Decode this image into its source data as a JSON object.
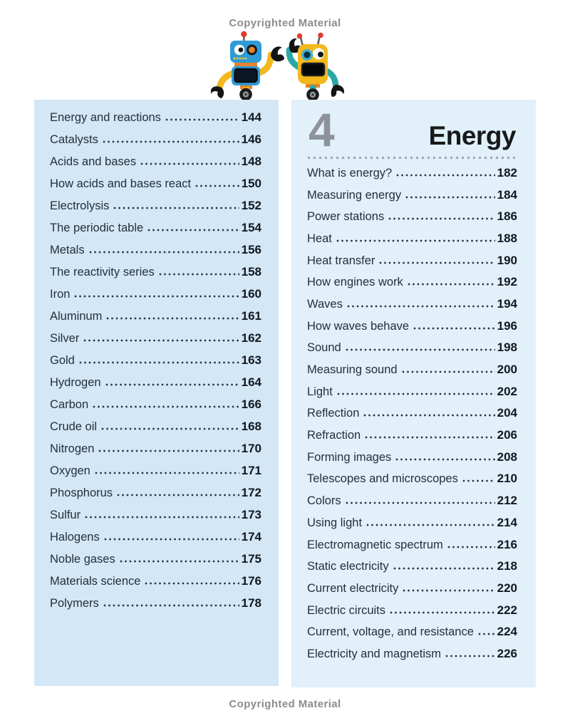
{
  "page": {
    "copyright_top": "Copyrighted Material",
    "copyright_bottom": "Copyrighted Material"
  },
  "theme": {
    "left_panel_bg": "#d3e7f7",
    "right_panel_bg": "#e2f0fa",
    "entry_text": "#24303a",
    "page_number": "#12181e",
    "chapter_number_gray": "#8d9399",
    "chapter_title_color": "#17191b",
    "copyright_gray": "#8c8c8c",
    "dot_leader": "#2a3540",
    "divider_dots": "#9aa8b4",
    "robot_blue": "#2e9bd6",
    "robot_yellow": "#f2b81d",
    "robot_teal": "#2ba8a5",
    "robot_orange": "#e8832a",
    "robot_red": "#e03a2f"
  },
  "left_column": {
    "entries": [
      {
        "label": "Energy and reactions",
        "page": "144"
      },
      {
        "label": "Catalysts",
        "page": "146"
      },
      {
        "label": "Acids and bases",
        "page": "148"
      },
      {
        "label": "How acids and bases react",
        "page": "150"
      },
      {
        "label": "Electrolysis",
        "page": "152"
      },
      {
        "label": "The periodic table",
        "page": "154"
      },
      {
        "label": "Metals",
        "page": "156"
      },
      {
        "label": "The reactivity series",
        "page": "158"
      },
      {
        "label": "Iron",
        "page": "160"
      },
      {
        "label": "Aluminum",
        "page": "161"
      },
      {
        "label": "Silver",
        "page": "162"
      },
      {
        "label": "Gold",
        "page": "163"
      },
      {
        "label": "Hydrogen",
        "page": "164"
      },
      {
        "label": "Carbon",
        "page": "166"
      },
      {
        "label": "Crude oil",
        "page": "168"
      },
      {
        "label": "Nitrogen",
        "page": "170"
      },
      {
        "label": "Oxygen",
        "page": "171"
      },
      {
        "label": "Phosphorus",
        "page": "172"
      },
      {
        "label": "Sulfur",
        "page": "173"
      },
      {
        "label": "Halogens",
        "page": "174"
      },
      {
        "label": "Noble gases",
        "page": "175"
      },
      {
        "label": "Materials science",
        "page": "176"
      },
      {
        "label": "Polymers",
        "page": "178"
      }
    ]
  },
  "right_column": {
    "chapter_number": "4",
    "chapter_title": "Energy",
    "entries": [
      {
        "label": "What is energy?",
        "page": "182"
      },
      {
        "label": "Measuring energy",
        "page": "184"
      },
      {
        "label": "Power stations",
        "page": "186"
      },
      {
        "label": "Heat",
        "page": "188"
      },
      {
        "label": "Heat transfer",
        "page": "190"
      },
      {
        "label": "How engines work",
        "page": "192"
      },
      {
        "label": "Waves",
        "page": "194"
      },
      {
        "label": "How waves behave",
        "page": "196"
      },
      {
        "label": "Sound",
        "page": "198"
      },
      {
        "label": "Measuring sound",
        "page": "200"
      },
      {
        "label": "Light",
        "page": "202"
      },
      {
        "label": "Reflection",
        "page": "204"
      },
      {
        "label": "Refraction",
        "page": "206"
      },
      {
        "label": "Forming images",
        "page": "208"
      },
      {
        "label": "Telescopes and microscopes",
        "page": "210"
      },
      {
        "label": "Colors",
        "page": "212"
      },
      {
        "label": "Using light",
        "page": "214"
      },
      {
        "label": "Electromagnetic spectrum",
        "page": "216"
      },
      {
        "label": "Static electricity",
        "page": "218"
      },
      {
        "label": "Current electricity",
        "page": "220"
      },
      {
        "label": "Electric circuits",
        "page": "222"
      },
      {
        "label": "Current, voltage, and resistance",
        "page": "224"
      },
      {
        "label": "Electricity and magnetism",
        "page": "226"
      }
    ]
  }
}
